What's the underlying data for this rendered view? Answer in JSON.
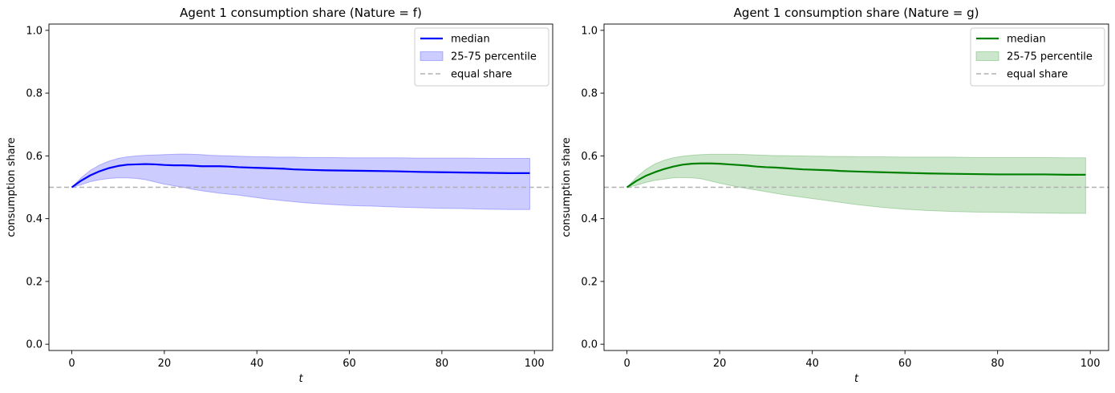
{
  "chart_data": [
    {
      "type": "line",
      "title": "Agent 1 consumption share (Nature = f)",
      "xlabel": "t",
      "ylabel": "consumption share",
      "xlim": [
        -4.95,
        103.95
      ],
      "ylim": [
        -0.02,
        1.02
      ],
      "xticks": [
        0,
        20,
        40,
        60,
        80,
        100
      ],
      "yticks": [
        0.0,
        0.2,
        0.4,
        0.6,
        0.8,
        1.0
      ],
      "xtick_labels": [
        "0",
        "20",
        "40",
        "60",
        "80",
        "100"
      ],
      "ytick_labels": [
        "0.0",
        "0.2",
        "0.4",
        "0.6",
        "0.8",
        "1.0"
      ],
      "colors": {
        "median": "#0000ff",
        "band": "#0000ff"
      },
      "legend": {
        "placement": "top-right",
        "entries": [
          "median",
          "25-75 percentile",
          "equal share"
        ]
      },
      "x": [
        0,
        2,
        4,
        6,
        8,
        10,
        12,
        14,
        16,
        18,
        20,
        22,
        24,
        26,
        28,
        30,
        32,
        34,
        36,
        38,
        40,
        42,
        44,
        46,
        48,
        50,
        55,
        60,
        65,
        70,
        75,
        80,
        85,
        90,
        95,
        99
      ],
      "series": [
        {
          "name": "median",
          "values": [
            0.5,
            0.521,
            0.538,
            0.551,
            0.561,
            0.568,
            0.572,
            0.573,
            0.574,
            0.573,
            0.571,
            0.57,
            0.57,
            0.569,
            0.567,
            0.567,
            0.567,
            0.566,
            0.564,
            0.563,
            0.562,
            0.561,
            0.56,
            0.559,
            0.557,
            0.556,
            0.554,
            0.553,
            0.552,
            0.551,
            0.549,
            0.548,
            0.547,
            0.546,
            0.545,
            0.545
          ]
        },
        {
          "name": "25-75 percentile",
          "lower": [
            0.5,
            0.508,
            0.518,
            0.524,
            0.528,
            0.53,
            0.53,
            0.528,
            0.524,
            0.517,
            0.51,
            0.505,
            0.5,
            0.494,
            0.489,
            0.485,
            0.481,
            0.478,
            0.475,
            0.471,
            0.467,
            0.463,
            0.46,
            0.457,
            0.454,
            0.451,
            0.446,
            0.442,
            0.44,
            0.437,
            0.435,
            0.433,
            0.432,
            0.43,
            0.429,
            0.429
          ],
          "upper": [
            0.5,
            0.53,
            0.554,
            0.571,
            0.583,
            0.592,
            0.597,
            0.6,
            0.602,
            0.603,
            0.604,
            0.605,
            0.606,
            0.605,
            0.604,
            0.602,
            0.601,
            0.6,
            0.599,
            0.598,
            0.597,
            0.597,
            0.596,
            0.596,
            0.596,
            0.595,
            0.595,
            0.594,
            0.594,
            0.594,
            0.593,
            0.593,
            0.593,
            0.592,
            0.592,
            0.592
          ]
        },
        {
          "name": "equal share",
          "y": 0.5
        }
      ]
    },
    {
      "type": "line",
      "title": "Agent 1 consumption share (Nature = g)",
      "xlabel": "t",
      "ylabel": "consumption share",
      "xlim": [
        -4.95,
        103.95
      ],
      "ylim": [
        -0.02,
        1.02
      ],
      "xticks": [
        0,
        20,
        40,
        60,
        80,
        100
      ],
      "yticks": [
        0.0,
        0.2,
        0.4,
        0.6,
        0.8,
        1.0
      ],
      "xtick_labels": [
        "0",
        "20",
        "40",
        "60",
        "80",
        "100"
      ],
      "ytick_labels": [
        "0.0",
        "0.2",
        "0.4",
        "0.6",
        "0.8",
        "1.0"
      ],
      "colors": {
        "median": "#008000",
        "band": "#008000"
      },
      "legend": {
        "placement": "top-right",
        "entries": [
          "median",
          "25-75 percentile",
          "equal share"
        ]
      },
      "x": [
        0,
        2,
        4,
        6,
        8,
        10,
        12,
        14,
        16,
        18,
        20,
        22,
        24,
        26,
        28,
        30,
        32,
        34,
        36,
        38,
        40,
        42,
        44,
        46,
        48,
        50,
        55,
        60,
        65,
        70,
        75,
        80,
        85,
        90,
        95,
        99
      ],
      "series": [
        {
          "name": "median",
          "values": [
            0.5,
            0.52,
            0.536,
            0.548,
            0.558,
            0.566,
            0.572,
            0.575,
            0.576,
            0.576,
            0.575,
            0.573,
            0.571,
            0.569,
            0.566,
            0.564,
            0.563,
            0.561,
            0.559,
            0.557,
            0.556,
            0.555,
            0.554,
            0.552,
            0.551,
            0.55,
            0.548,
            0.546,
            0.544,
            0.543,
            0.542,
            0.541,
            0.541,
            0.541,
            0.54,
            0.54
          ]
        },
        {
          "name": "25-75 percentile",
          "lower": [
            0.5,
            0.506,
            0.515,
            0.522,
            0.526,
            0.53,
            0.531,
            0.53,
            0.527,
            0.52,
            0.513,
            0.507,
            0.501,
            0.496,
            0.491,
            0.486,
            0.481,
            0.476,
            0.472,
            0.468,
            0.464,
            0.46,
            0.456,
            0.452,
            0.448,
            0.444,
            0.436,
            0.43,
            0.426,
            0.423,
            0.421,
            0.42,
            0.419,
            0.418,
            0.417,
            0.417
          ],
          "upper": [
            0.5,
            0.531,
            0.556,
            0.574,
            0.586,
            0.594,
            0.599,
            0.602,
            0.604,
            0.605,
            0.605,
            0.605,
            0.605,
            0.604,
            0.603,
            0.602,
            0.601,
            0.601,
            0.6,
            0.6,
            0.599,
            0.599,
            0.598,
            0.598,
            0.598,
            0.597,
            0.597,
            0.596,
            0.596,
            0.596,
            0.595,
            0.595,
            0.595,
            0.595,
            0.594,
            0.594
          ]
        },
        {
          "name": "equal share",
          "y": 0.5
        }
      ]
    }
  ]
}
